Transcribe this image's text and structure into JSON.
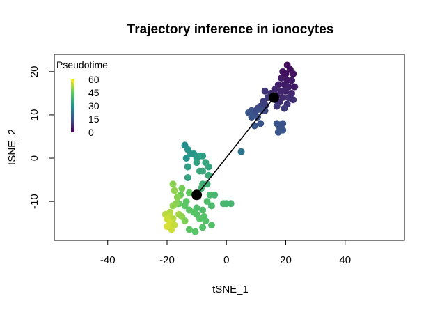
{
  "chart_data": {
    "type": "scatter",
    "title": "Trajectory inference in ionocytes",
    "xlabel": "tSNE_1",
    "ylabel": "tSNE_2",
    "xlim": [
      -58,
      60
    ],
    "ylim": [
      -19,
      24
    ],
    "xticks": [
      -40,
      -20,
      0,
      20,
      40
    ],
    "yticks": [
      -10,
      0,
      10,
      20
    ],
    "grid": false,
    "legend": {
      "title": "Pseudotime",
      "position": "top-left",
      "ticks": [
        60,
        45,
        30,
        15,
        0
      ],
      "range": [
        0,
        65
      ],
      "colormap": [
        "#440154",
        "#3b528b",
        "#21918c",
        "#5ec962",
        "#fde725"
      ]
    },
    "trajectory": {
      "nodes": [
        [
          -10,
          -8.5
        ],
        [
          16,
          14
        ]
      ]
    },
    "points": [
      [
        20.5,
        21.5,
        2
      ],
      [
        21.5,
        20.5,
        3
      ],
      [
        19,
        20,
        4
      ],
      [
        20,
        19.5,
        3
      ],
      [
        22.5,
        19.5,
        3
      ],
      [
        18.5,
        18.5,
        5
      ],
      [
        20.5,
        18,
        4
      ],
      [
        22,
        18,
        5
      ],
      [
        17.5,
        17,
        6
      ],
      [
        19.5,
        17,
        5
      ],
      [
        21,
        16.5,
        6
      ],
      [
        23,
        16.5,
        5
      ],
      [
        16.5,
        16,
        7
      ],
      [
        18.5,
        15.5,
        7
      ],
      [
        20,
        15.5,
        7
      ],
      [
        22,
        15,
        7
      ],
      [
        17,
        14.5,
        8
      ],
      [
        19,
        14,
        8
      ],
      [
        21,
        14,
        9
      ],
      [
        18,
        13,
        9
      ],
      [
        20.5,
        12.5,
        10
      ],
      [
        22.5,
        13.5,
        9
      ],
      [
        15,
        15,
        9
      ],
      [
        13,
        15.5,
        10
      ],
      [
        19.5,
        11.5,
        11
      ],
      [
        17,
        12,
        11
      ],
      [
        16.5,
        13.5,
        10
      ],
      [
        14,
        14,
        11
      ],
      [
        12.5,
        13.2,
        12
      ],
      [
        13.2,
        12.2,
        12
      ],
      [
        11.5,
        12,
        13
      ],
      [
        13,
        11,
        14
      ],
      [
        10.5,
        11.5,
        14
      ],
      [
        8.5,
        11,
        16
      ],
      [
        9,
        10.5,
        16
      ],
      [
        7.5,
        10.5,
        17
      ],
      [
        8.5,
        9.5,
        17
      ],
      [
        10.5,
        9.5,
        16
      ],
      [
        12,
        11,
        15
      ],
      [
        10,
        11,
        15
      ],
      [
        9.5,
        7.5,
        18
      ],
      [
        11.5,
        8,
        17
      ],
      [
        17,
        8,
        17
      ],
      [
        18,
        7,
        17
      ],
      [
        19,
        6.5,
        17
      ],
      [
        17.5,
        6,
        17
      ],
      [
        19,
        8,
        16
      ],
      [
        5,
        1.5,
        25
      ],
      [
        -14,
        3,
        32
      ],
      [
        -13,
        2,
        33
      ],
      [
        -12,
        1,
        34
      ],
      [
        -13.5,
        0,
        33
      ],
      [
        -11,
        1,
        34
      ],
      [
        -10,
        0,
        35
      ],
      [
        -9,
        0.5,
        36
      ],
      [
        -8,
        0.5,
        36
      ],
      [
        -10,
        -1,
        37
      ],
      [
        -13,
        -2,
        36
      ],
      [
        -7,
        -1,
        38
      ],
      [
        -6,
        -2,
        38
      ],
      [
        -9,
        -3,
        39
      ],
      [
        -8,
        -3,
        39
      ],
      [
        -13,
        -4.5,
        37
      ],
      [
        -6,
        -4,
        40
      ],
      [
        -8,
        -6,
        41
      ],
      [
        -6.5,
        -6,
        41
      ],
      [
        -8.5,
        -7,
        42
      ],
      [
        -5.5,
        -8.5,
        44
      ],
      [
        -4,
        -8.5,
        43
      ],
      [
        -6.5,
        -10,
        45
      ],
      [
        -5,
        -11,
        44
      ],
      [
        -1,
        -10.5,
        43
      ],
      [
        0,
        -10.5,
        43
      ],
      [
        1.5,
        -10.5,
        43
      ],
      [
        -8,
        -12,
        45
      ],
      [
        -10,
        -11.5,
        45
      ],
      [
        -7.5,
        -13.5,
        46
      ],
      [
        -9,
        -14,
        47
      ],
      [
        -7,
        -14.5,
        46
      ],
      [
        -5,
        -15.5,
        46
      ],
      [
        -8,
        -16,
        46
      ],
      [
        -10.5,
        -17,
        47
      ],
      [
        -12.5,
        -16.5,
        48
      ],
      [
        -10,
        -13,
        47
      ],
      [
        -11,
        -12.5,
        47
      ],
      [
        -12.5,
        -12,
        48
      ],
      [
        -14,
        -11,
        48
      ],
      [
        -16,
        -10.5,
        49
      ],
      [
        -13.5,
        -10,
        48
      ],
      [
        -15.5,
        -8.5,
        50
      ],
      [
        -12.5,
        -8,
        49
      ],
      [
        -15,
        -7,
        51
      ],
      [
        -18,
        -6,
        53
      ],
      [
        -17.5,
        -7.5,
        54
      ],
      [
        -16.5,
        -9,
        53
      ],
      [
        -17,
        -10.5,
        53
      ],
      [
        -18,
        -11,
        54
      ],
      [
        -19,
        -12.5,
        57
      ],
      [
        -20.5,
        -13,
        58
      ],
      [
        -19,
        -13.5,
        59
      ],
      [
        -18,
        -14,
        58
      ],
      [
        -20,
        -14,
        60
      ],
      [
        -19,
        -15,
        61
      ],
      [
        -17.5,
        -15.5,
        59
      ],
      [
        -18.5,
        -16.5,
        60
      ],
      [
        -20,
        -15.8,
        61
      ],
      [
        -16,
        -13,
        56
      ],
      [
        -15,
        -13.5,
        54
      ],
      [
        -14,
        -14.5,
        52
      ]
    ]
  }
}
